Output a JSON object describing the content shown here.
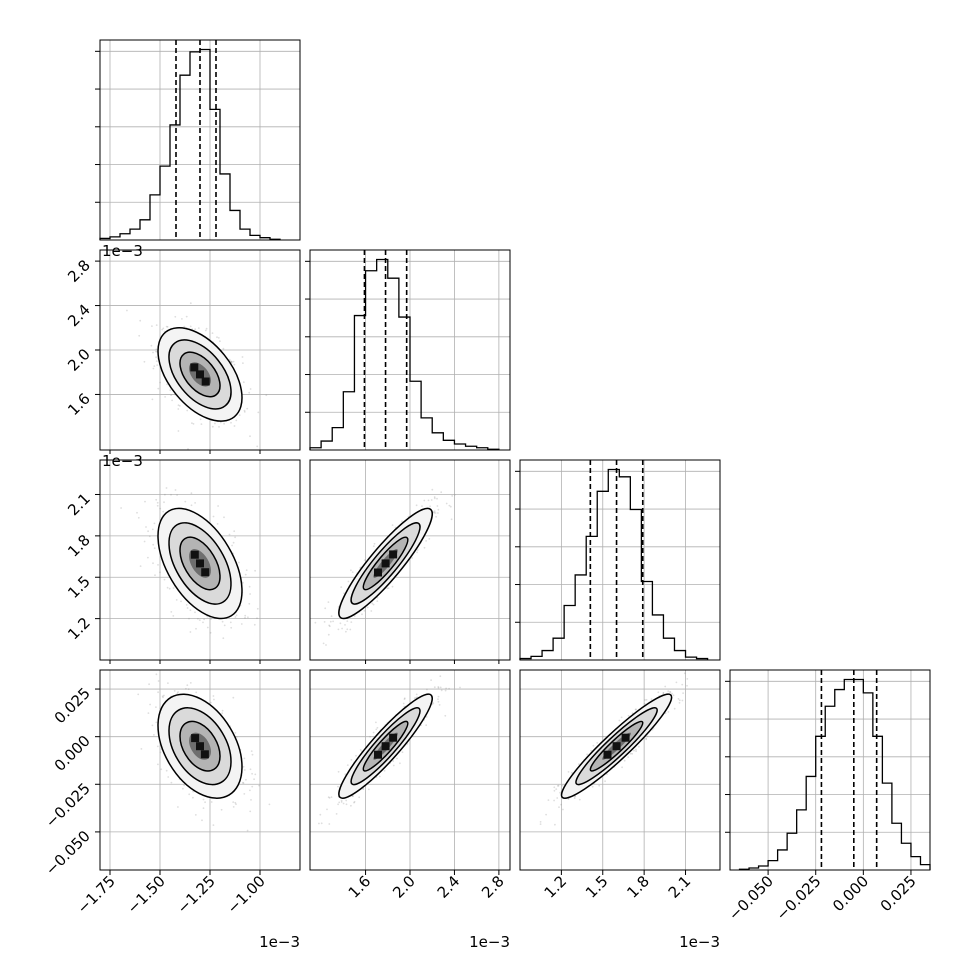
{
  "chart_data": {
    "type": "corner",
    "colors": {
      "line": "#000000",
      "grid": "#b0b0b0",
      "scatter": "#8a8a8a",
      "background": "#ffffff"
    },
    "grid": true,
    "parameters": [
      {
        "index": 0,
        "range": [
          -1.8,
          -0.8
        ],
        "ticks": [
          -1.75,
          -1.5,
          -1.25,
          -1.0
        ],
        "tick_labels": [
          "−1.75",
          "−1.50",
          "−1.25",
          "−1.00"
        ],
        "offset_text": "1e−3",
        "center": -1.3,
        "sd": 0.1
      },
      {
        "index": 1,
        "range": [
          1.1,
          2.9
        ],
        "ticks": [
          1.6,
          2.0,
          2.4,
          2.8
        ],
        "tick_labels": [
          "1.6",
          "2.0",
          "2.4",
          "2.8"
        ],
        "offset_text": "1e−3",
        "center": 1.78,
        "sd": 0.2
      },
      {
        "index": 2,
        "range": [
          0.9,
          2.35
        ],
        "ticks": [
          1.2,
          1.5,
          1.8,
          2.1
        ],
        "tick_labels": [
          "1.2",
          "1.5",
          "1.8",
          "2.1"
        ],
        "offset_text": "1e−3",
        "center": 1.6,
        "sd": 0.19
      },
      {
        "index": 3,
        "range": [
          -0.07,
          0.035
        ],
        "ticks": [
          -0.05,
          -0.025,
          0.0,
          0.025
        ],
        "tick_labels": [
          "−0.050",
          "−0.025",
          "0.000",
          "0.025"
        ],
        "center": -0.005,
        "sd": 0.013
      }
    ],
    "quantile_lines": [
      [
        -1.42,
        -1.3,
        -1.22
      ],
      [
        1.59,
        1.78,
        1.97
      ],
      [
        1.41,
        1.6,
        1.79
      ],
      [
        -0.022,
        -0.005,
        0.007
      ]
    ],
    "histograms": [
      {
        "bin_edges": [
          -1.8,
          -1.75,
          -1.7,
          -1.65,
          -1.6,
          -1.55,
          -1.5,
          -1.45,
          -1.4,
          -1.35,
          -1.3,
          -1.25,
          -1.2,
          -1.15,
          -1.1,
          -1.05,
          -1.0,
          -0.95,
          -0.9
        ],
        "counts": [
          2,
          4,
          8,
          14,
          26,
          58,
          95,
          148,
          212,
          242,
          245,
          168,
          85,
          38,
          14,
          6,
          3,
          1
        ]
      },
      {
        "bin_edges": [
          1.1,
          1.2,
          1.3,
          1.4,
          1.5,
          1.6,
          1.7,
          1.8,
          1.9,
          2.0,
          2.1,
          2.2,
          2.3,
          2.4,
          2.5,
          2.6,
          2.7,
          2.8
        ],
        "counts": [
          3,
          12,
          30,
          78,
          180,
          240,
          255,
          230,
          178,
          92,
          43,
          23,
          13,
          8,
          5,
          3,
          1
        ]
      },
      {
        "bin_edges": [
          0.9,
          0.98,
          1.06,
          1.14,
          1.22,
          1.3,
          1.38,
          1.46,
          1.54,
          1.62,
          1.7,
          1.78,
          1.86,
          1.94,
          2.02,
          2.1,
          2.18,
          2.26
        ],
        "counts": [
          2,
          5,
          13,
          30,
          75,
          117,
          170,
          232,
          262,
          252,
          207,
          108,
          62,
          30,
          13,
          4,
          2
        ]
      },
      {
        "bin_edges": [
          -0.065,
          -0.06,
          -0.055,
          -0.05,
          -0.045,
          -0.04,
          -0.035,
          -0.03,
          -0.025,
          -0.02,
          -0.015,
          -0.01,
          -0.005,
          0.0,
          0.005,
          0.01,
          0.015,
          0.02,
          0.025,
          0.03,
          0.035
        ],
        "counts": [
          1,
          3,
          6,
          14,
          30,
          55,
          90,
          140,
          200,
          245,
          270,
          285,
          285,
          265,
          200,
          130,
          70,
          40,
          20,
          8
        ]
      }
    ],
    "pairs": [
      {
        "row": 1,
        "col": 0,
        "correlation": -0.5
      },
      {
        "row": 2,
        "col": 0,
        "correlation": -0.5
      },
      {
        "row": 2,
        "col": 1,
        "correlation": 0.9
      },
      {
        "row": 3,
        "col": 0,
        "correlation": -0.4
      },
      {
        "row": 3,
        "col": 1,
        "correlation": 0.92
      },
      {
        "row": 3,
        "col": 2,
        "correlation": 0.94
      }
    ]
  }
}
